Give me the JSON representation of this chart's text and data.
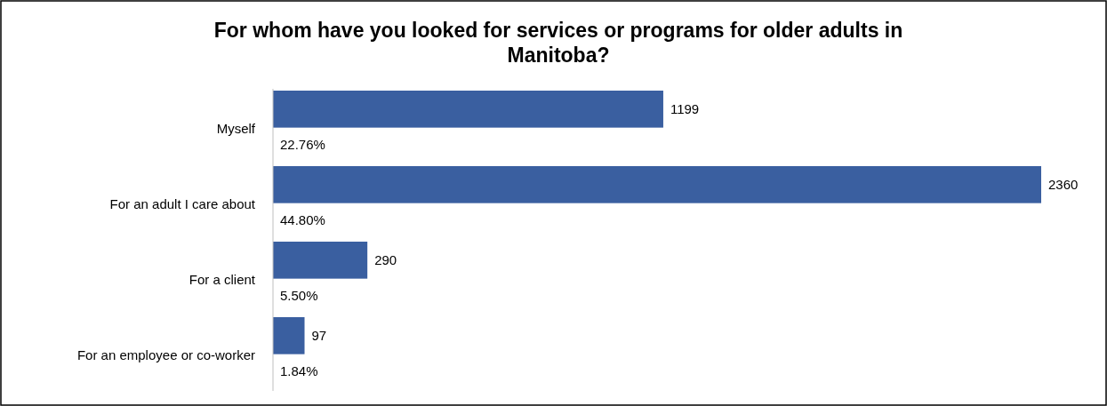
{
  "chart_data": {
    "type": "bar",
    "orientation": "horizontal",
    "title": "For whom have you looked for services or programs for older adults in Manitoba?",
    "categories": [
      "Myself",
      "For an adult I care about",
      "For a client",
      "For an employee or co-worker"
    ],
    "values": [
      1199,
      2360,
      290,
      97
    ],
    "color": "#3a5fa0",
    "data_labels": true,
    "annotations": [
      "22.76%",
      "44.80%",
      "5.50%",
      "1.84%"
    ]
  }
}
